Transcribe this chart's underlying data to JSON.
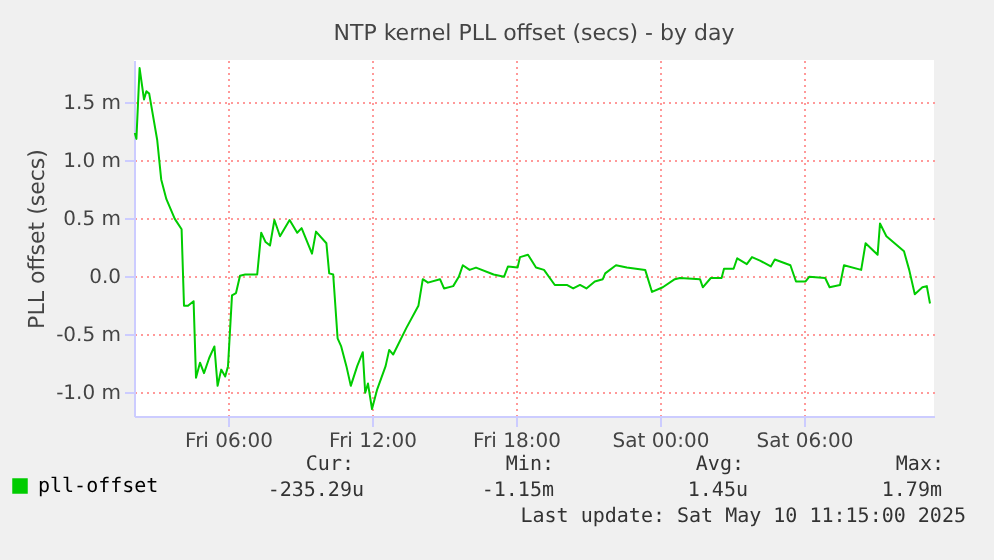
{
  "chart_data": {
    "type": "line",
    "title": "NTP kernel PLL offset (secs) - by day",
    "ylabel": "PLL offset (secs)",
    "x": [
      "2025-05-09T02:07",
      "2025-05-09T02:11",
      "2025-05-09T02:19",
      "2025-05-09T02:30",
      "2025-05-09T02:36",
      "2025-05-09T02:43",
      "2025-05-09T03:03",
      "2025-05-09T03:13",
      "2025-05-09T03:26",
      "2025-05-09T03:47",
      "2025-05-09T04:04",
      "2025-05-09T04:10",
      "2025-05-09T04:20",
      "2025-05-09T04:34",
      "2025-05-09T04:40",
      "2025-05-09T04:50",
      "2025-05-09T05:00",
      "2025-05-09T05:13",
      "2025-05-09T05:26",
      "2025-05-09T05:34",
      "2025-05-09T05:43",
      "2025-05-09T05:53",
      "2025-05-09T06:00",
      "2025-05-09T06:10",
      "2025-05-09T06:20",
      "2025-05-09T06:30",
      "2025-05-09T06:43",
      "2025-05-09T07:13",
      "2025-05-09T07:23",
      "2025-05-09T07:34",
      "2025-05-09T07:45",
      "2025-05-09T07:56",
      "2025-05-09T08:10",
      "2025-05-09T08:34",
      "2025-05-09T08:53",
      "2025-05-09T09:04",
      "2025-05-09T09:30",
      "2025-05-09T09:40",
      "2025-05-09T10:06",
      "2025-05-09T10:13",
      "2025-05-09T10:23",
      "2025-05-09T10:34",
      "2025-05-09T10:43",
      "2025-05-09T10:56",
      "2025-05-09T11:07",
      "2025-05-09T11:23",
      "2025-05-09T11:37",
      "2025-05-09T11:43",
      "2025-05-09T11:50",
      "2025-05-09T12:00",
      "2025-05-09T12:13",
      "2025-05-09T12:34",
      "2025-05-09T12:43",
      "2025-05-09T12:53",
      "2025-05-09T13:26",
      "2025-05-09T13:56",
      "2025-05-09T14:07",
      "2025-05-09T14:20",
      "2025-05-09T14:50",
      "2025-05-09T15:00",
      "2025-05-09T15:23",
      "2025-05-09T15:37",
      "2025-05-09T15:47",
      "2025-05-09T16:04",
      "2025-05-09T16:20",
      "2025-05-09T17:04",
      "2025-05-09T17:30",
      "2025-05-09T17:40",
      "2025-05-09T18:04",
      "2025-05-09T18:10",
      "2025-05-09T18:30",
      "2025-05-09T18:50",
      "2025-05-09T19:10",
      "2025-05-09T19:37",
      "2025-05-09T20:07",
      "2025-05-09T20:23",
      "2025-05-09T20:40",
      "2025-05-09T20:56",
      "2025-05-09T21:17",
      "2025-05-09T21:37",
      "2025-05-09T21:43",
      "2025-05-09T22:10",
      "2025-05-09T22:37",
      "2025-05-09T23:23",
      "2025-05-09T23:40",
      "2025-05-10T00:07",
      "2025-05-10T00:37",
      "2025-05-10T00:50",
      "2025-05-10T01:40",
      "2025-05-10T01:47",
      "2025-05-10T02:07",
      "2025-05-10T02:34",
      "2025-05-10T02:40",
      "2025-05-10T03:04",
      "2025-05-10T03:13",
      "2025-05-10T03:37",
      "2025-05-10T03:50",
      "2025-05-10T04:10",
      "2025-05-10T04:37",
      "2025-05-10T04:47",
      "2025-05-10T05:26",
      "2025-05-10T05:40",
      "2025-05-10T06:04",
      "2025-05-10T06:13",
      "2025-05-10T06:53",
      "2025-05-10T07:04",
      "2025-05-10T07:30",
      "2025-05-10T07:40",
      "2025-05-10T08:23",
      "2025-05-10T08:34",
      "2025-05-10T09:04",
      "2025-05-10T09:10",
      "2025-05-10T09:26",
      "2025-05-10T10:10",
      "2025-05-10T10:23",
      "2025-05-10T10:37",
      "2025-05-10T10:56",
      "2025-05-10T11:07",
      "2025-05-10T11:15"
    ],
    "series": [
      {
        "name": "pll-offset",
        "color": "#00cc00",
        "values": [
          1.23,
          1.18,
          1.79,
          1.52,
          1.59,
          1.57,
          1.17,
          0.83,
          0.66,
          0.49,
          0.4,
          -0.26,
          -0.26,
          -0.22,
          -0.88,
          -0.75,
          -0.84,
          -0.71,
          -0.61,
          -0.95,
          -0.81,
          -0.87,
          -0.78,
          -0.17,
          -0.15,
          0.0,
          0.01,
          0.01,
          0.37,
          0.29,
          0.26,
          0.48,
          0.34,
          0.48,
          0.37,
          0.41,
          0.19,
          0.38,
          0.28,
          0.02,
          0.01,
          -0.54,
          -0.61,
          -0.78,
          -0.95,
          -0.78,
          -0.66,
          -1.01,
          -0.93,
          -1.15,
          -0.98,
          -0.78,
          -0.64,
          -0.68,
          -0.45,
          -0.26,
          -0.03,
          -0.06,
          -0.03,
          -0.11,
          -0.09,
          -0.01,
          0.09,
          0.05,
          0.07,
          0.01,
          -0.01,
          0.08,
          0.07,
          0.16,
          0.18,
          0.07,
          0.05,
          -0.08,
          -0.08,
          -0.11,
          -0.08,
          -0.11,
          -0.05,
          -0.03,
          0.02,
          0.09,
          0.07,
          0.05,
          -0.14,
          -0.1,
          -0.03,
          -0.02,
          -0.03,
          -0.1,
          -0.02,
          -0.02,
          0.06,
          0.06,
          0.15,
          0.1,
          0.16,
          0.13,
          0.08,
          0.14,
          0.09,
          -0.05,
          -0.05,
          -0.01,
          -0.02,
          -0.1,
          -0.08,
          0.09,
          0.05,
          0.28,
          0.18,
          0.45,
          0.34,
          0.21,
          0.05,
          -0.16,
          -0.1,
          -0.09,
          -0.24
        ]
      }
    ],
    "xlim": [
      "2025-05-09T02:05",
      "2025-05-10T11:25"
    ],
    "xticks": [
      {
        "value": "2025-05-09T06:00",
        "label": "Fri 06:00"
      },
      {
        "value": "2025-05-09T12:00",
        "label": "Fri 12:00"
      },
      {
        "value": "2025-05-09T18:00",
        "label": "Fri 18:00"
      },
      {
        "value": "2025-05-10T00:00",
        "label": "Sat 00:00"
      },
      {
        "value": "2025-05-10T06:00",
        "label": "Sat 06:00"
      }
    ],
    "ylim": [
      -1.21,
      1.86
    ],
    "yticks": [
      {
        "value": -1.0,
        "label": "-1.0 m"
      },
      {
        "value": -0.5,
        "label": "-0.5 m"
      },
      {
        "value": 0,
        "label": "0.0"
      },
      {
        "value": 0.5,
        "label": "0.5 m"
      },
      {
        "value": 1.0,
        "label": "1.0 m"
      },
      {
        "value": 1.5,
        "label": "1.5 m"
      }
    ],
    "grid": true,
    "legend": "bottom left",
    "annotations": [
      "Cur:",
      "-235.29u",
      "Min:",
      "-1.15m",
      "Avg:",
      "1.45u",
      "Max:",
      "1.79m",
      "Last update: Sat May 10 11:15:00 2025"
    ]
  }
}
